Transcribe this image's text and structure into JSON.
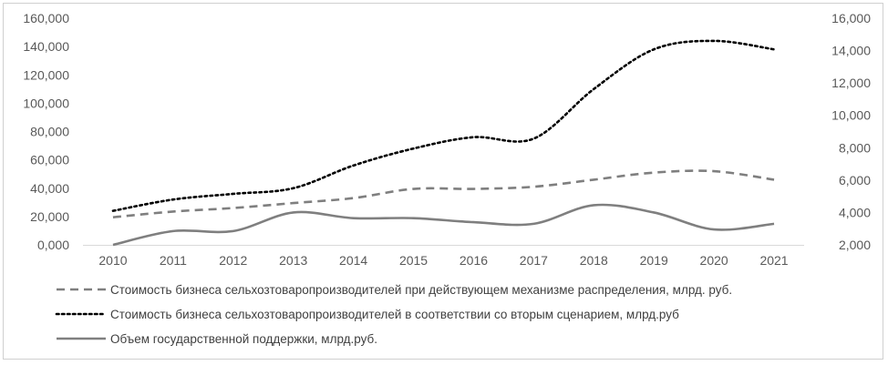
{
  "chart_data": {
    "type": "line",
    "categories": [
      "2010",
      "2011",
      "2012",
      "2013",
      "2014",
      "2015",
      "2016",
      "2017",
      "2018",
      "2019",
      "2020",
      "2021"
    ],
    "y_left": {
      "ylim": [
        0,
        160000
      ],
      "ticks": [
        0,
        20000,
        40000,
        60000,
        80000,
        100000,
        120000,
        140000,
        160000
      ],
      "tick_labels": [
        "0,000",
        "20,000",
        "40,000",
        "60,000",
        "80,000",
        "100,000",
        "120,000",
        "140,000",
        "160,000"
      ]
    },
    "y_right": {
      "ylim": [
        2000,
        16000
      ],
      "ticks": [
        2000,
        4000,
        6000,
        8000,
        10000,
        12000,
        14000,
        16000
      ],
      "tick_labels": [
        "2,000",
        "4,000",
        "6,000",
        "8,000",
        "10,000",
        "12,000",
        "14,000",
        "16,000"
      ]
    },
    "series": [
      {
        "name": "Стоимость бизнеса сельхозтоваропроизводителей при действующем механизме распределения, млрд. руб.",
        "axis": "left",
        "style": "dashed",
        "color": "#7f7f7f",
        "values": [
          19500,
          23500,
          26000,
          29500,
          33000,
          39500,
          39500,
          41000,
          46000,
          51000,
          52000,
          46000
        ]
      },
      {
        "name": "Стоимость бизнеса сельхозтоваропроизводителей в соответствии со вторым сценарием, млрд.руб",
        "axis": "left",
        "style": "dotted",
        "color": "#000000",
        "values": [
          24000,
          32000,
          36000,
          40000,
          56000,
          68000,
          76000,
          75000,
          110000,
          138000,
          144000,
          138000
        ]
      },
      {
        "name": "Объем государственной поддержки, млрд.руб.",
        "axis": "right",
        "style": "solid",
        "color": "#7f7f7f",
        "values": [
          2000,
          2850,
          2850,
          4000,
          3650,
          3650,
          3400,
          3300,
          4450,
          4000,
          2950,
          3300
        ]
      }
    ],
    "legend_position": "bottom",
    "grid": false
  }
}
